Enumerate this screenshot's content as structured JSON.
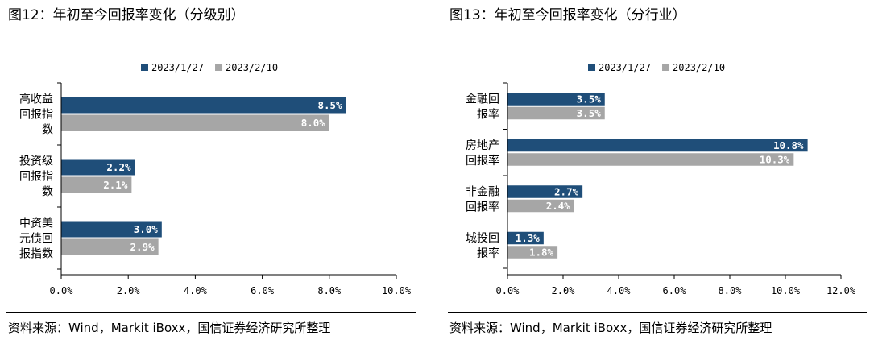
{
  "charts": [
    {
      "title": "图12：年初至今回报率变化（分级别）",
      "source": "资料来源：Wind，Markit iBoxx，国信证券经济研究所整理",
      "chart_data": {
        "type": "bar",
        "orientation": "horizontal",
        "categories": [
          [
            "高收益",
            "回报指",
            "数"
          ],
          [
            "投资级",
            "回报指",
            "数"
          ],
          [
            "中资美",
            "元债回",
            "报指数"
          ]
        ],
        "series": [
          {
            "name": "2023/1/27",
            "color": "#1f4e79",
            "values": [
              8.5,
              2.2,
              3.0
            ],
            "labels": [
              "8.5%",
              "2.2%",
              "3.0%"
            ]
          },
          {
            "name": "2023/2/10",
            "color": "#a6a6a6",
            "values": [
              8.0,
              2.1,
              2.9
            ],
            "labels": [
              "8.0%",
              "2.1%",
              "2.9%"
            ]
          }
        ],
        "xlim": [
          0,
          10
        ],
        "xticks": [
          0,
          2,
          4,
          6,
          8,
          10
        ],
        "xtick_labels": [
          "0.0%",
          "2.0%",
          "4.0%",
          "6.0%",
          "8.0%",
          "10.0%"
        ],
        "legend_position": "top",
        "grid": false
      }
    },
    {
      "title": "图13：年初至今回报率变化（分行业）",
      "source": "资料来源：Wind，Markit iBoxx，国信证券经济研究所整理",
      "chart_data": {
        "type": "bar",
        "orientation": "horizontal",
        "categories": [
          [
            "金融回",
            "报率"
          ],
          [
            "房地产",
            "回报率"
          ],
          [
            "非金融",
            "回报率"
          ],
          [
            "城投回",
            "报率"
          ]
        ],
        "series": [
          {
            "name": "2023/1/27",
            "color": "#1f4e79",
            "values": [
              3.5,
              10.8,
              2.7,
              1.3
            ],
            "labels": [
              "3.5%",
              "10.8%",
              "2.7%",
              "1.3%"
            ]
          },
          {
            "name": "2023/2/10",
            "color": "#a6a6a6",
            "values": [
              3.5,
              10.3,
              2.4,
              1.8
            ],
            "labels": [
              "3.5%",
              "10.3%",
              "2.4%",
              "1.8%"
            ]
          }
        ],
        "xlim": [
          0,
          12
        ],
        "xticks": [
          0,
          2,
          4,
          6,
          8,
          10,
          12
        ],
        "xtick_labels": [
          "0.0%",
          "2.0%",
          "4.0%",
          "6.0%",
          "8.0%",
          "10.0%",
          "12.0%"
        ],
        "legend_position": "top",
        "grid": false
      }
    }
  ]
}
